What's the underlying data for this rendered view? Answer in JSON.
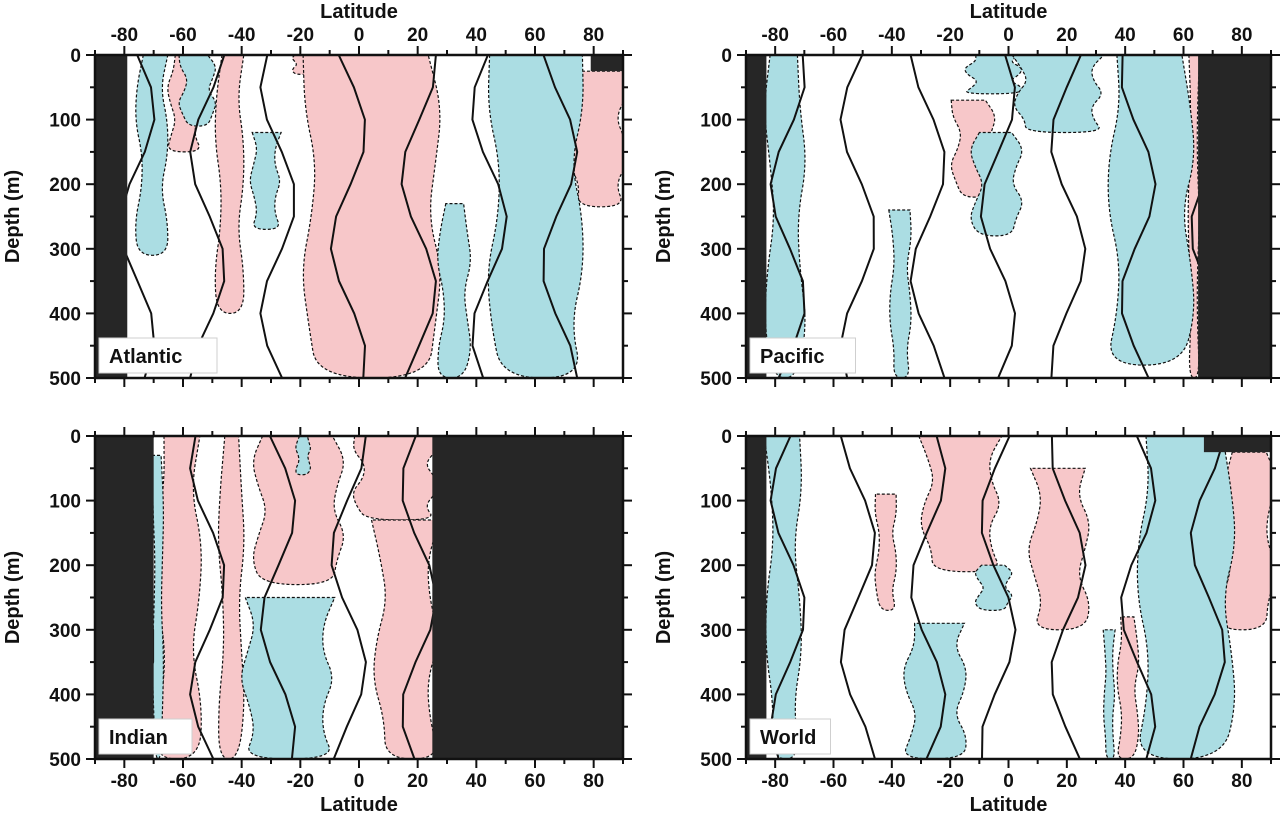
{
  "colors": {
    "positive_fill": "#f7c7c9",
    "negative_fill": "#abdde3",
    "land_fill": "#262626",
    "contour_line": "#111111"
  },
  "chart_data": [
    {
      "type": "heatmap",
      "panel": "Atlantic",
      "basin_label": "Atlantic",
      "xlabel_top": "Latitude",
      "xlabel_bottom": "",
      "ylabel": "Depth (m)",
      "xlim": [
        -90,
        90
      ],
      "ylim": [
        0,
        500
      ],
      "y_inverted": true,
      "xticks": [
        -80,
        -60,
        -40,
        -20,
        0,
        20,
        40,
        60,
        80
      ],
      "yticks": [
        0,
        100,
        200,
        300,
        400,
        500
      ],
      "land_regions": [
        {
          "lat": [
            -90,
            -79
          ],
          "depth": [
            0,
            500
          ]
        },
        {
          "lat": [
            79,
            90
          ],
          "depth": [
            0,
            25
          ]
        }
      ],
      "positive_bands": [
        {
          "lat": [
            -64,
            -55
          ],
          "depth": [
            0,
            150
          ]
        },
        {
          "lat": [
            -48,
            -40
          ],
          "depth": [
            0,
            400
          ]
        },
        {
          "lat": [
            -22,
            -17
          ],
          "depth": [
            0,
            30
          ]
        },
        {
          "lat": [
            -17,
            26
          ],
          "depth": [
            0,
            500
          ]
        },
        {
          "lat": [
            73,
            90
          ],
          "depth": [
            25,
            235
          ]
        }
      ],
      "negative_bands": [
        {
          "lat": [
            -75,
            -66
          ],
          "depth": [
            0,
            310
          ]
        },
        {
          "lat": [
            -60,
            -50
          ],
          "depth": [
            0,
            110
          ]
        },
        {
          "lat": [
            -36,
            -28
          ],
          "depth": [
            120,
            270
          ]
        },
        {
          "lat": [
            28,
            37
          ],
          "depth": [
            230,
            500
          ]
        },
        {
          "lat": [
            46,
            75
          ],
          "depth": [
            0,
            500
          ]
        }
      ]
    },
    {
      "type": "heatmap",
      "panel": "Pacific",
      "basin_label": "Pacific",
      "xlabel_top": "Latitude",
      "xlabel_bottom": "",
      "ylabel": "Depth (m)",
      "xlim": [
        -90,
        90
      ],
      "ylim": [
        0,
        500
      ],
      "y_inverted": true,
      "xticks": [
        -80,
        -60,
        -40,
        -20,
        0,
        20,
        40,
        60,
        80
      ],
      "yticks": [
        0,
        100,
        200,
        300,
        400,
        500
      ],
      "land_regions": [
        {
          "lat": [
            -90,
            -83
          ],
          "depth": [
            0,
            500
          ]
        },
        {
          "lat": [
            65,
            90
          ],
          "depth": [
            0,
            500
          ]
        }
      ],
      "positive_bands": [
        {
          "lat": [
            -18,
            -6
          ],
          "depth": [
            70,
            220
          ]
        },
        {
          "lat": [
            44,
            53
          ],
          "depth": [
            100,
            200
          ]
        },
        {
          "lat": [
            62,
            65
          ],
          "depth": [
            0,
            500
          ]
        }
      ],
      "negative_bands": [
        {
          "lat": [
            -82,
            -71
          ],
          "depth": [
            0,
            500
          ]
        },
        {
          "lat": [
            -40,
            -34
          ],
          "depth": [
            240,
            500
          ]
        },
        {
          "lat": [
            -13,
            3
          ],
          "depth": [
            0,
            60
          ]
        },
        {
          "lat": [
            -11,
            3
          ],
          "depth": [
            120,
            280
          ]
        },
        {
          "lat": [
            4,
            30
          ],
          "depth": [
            0,
            120
          ]
        },
        {
          "lat": [
            36,
            62
          ],
          "depth": [
            0,
            480
          ]
        }
      ]
    },
    {
      "type": "heatmap",
      "panel": "Indian",
      "basin_label": "Indian",
      "xlabel_top": "",
      "xlabel_bottom": "Latitude",
      "ylabel": "Depth (m)",
      "xlim": [
        -90,
        90
      ],
      "ylim": [
        0,
        500
      ],
      "y_inverted": true,
      "xticks": [
        -80,
        -60,
        -40,
        -20,
        0,
        20,
        40,
        60,
        80
      ],
      "yticks": [
        0,
        100,
        200,
        300,
        400,
        500
      ],
      "land_regions": [
        {
          "lat": [
            -90,
            -70
          ],
          "depth": [
            0,
            500
          ]
        },
        {
          "lat": [
            25,
            90
          ],
          "depth": [
            0,
            500
          ]
        }
      ],
      "positive_bands": [
        {
          "lat": [
            -68,
            -55
          ],
          "depth": [
            0,
            500
          ]
        },
        {
          "lat": [
            -47,
            -40
          ],
          "depth": [
            0,
            500
          ]
        },
        {
          "lat": [
            -34,
            -7
          ],
          "depth": [
            0,
            230
          ]
        },
        {
          "lat": [
            0,
            25
          ],
          "depth": [
            0,
            130
          ]
        },
        {
          "lat": [
            7,
            25
          ],
          "depth": [
            130,
            500
          ]
        }
      ],
      "negative_bands": [
        {
          "lat": [
            -70,
            -67
          ],
          "depth": [
            30,
            500
          ]
        },
        {
          "lat": [
            -38,
            -11
          ],
          "depth": [
            250,
            500
          ]
        },
        {
          "lat": [
            -21,
            -17
          ],
          "depth": [
            0,
            60
          ]
        }
      ]
    },
    {
      "type": "heatmap",
      "panel": "World",
      "basin_label": "World",
      "xlabel_top": "",
      "xlabel_bottom": "Latitude",
      "ylabel": "Depth (m)",
      "xlim": [
        -90,
        90
      ],
      "ylim": [
        0,
        500
      ],
      "y_inverted": true,
      "xticks": [
        -80,
        -60,
        -40,
        -20,
        0,
        20,
        40,
        60,
        80
      ],
      "yticks": [
        0,
        100,
        200,
        300,
        400,
        500
      ],
      "land_regions": [
        {
          "lat": [
            -90,
            -83
          ],
          "depth": [
            0,
            500
          ]
        },
        {
          "lat": [
            67,
            90
          ],
          "depth": [
            0,
            25
          ]
        }
      ],
      "positive_bands": [
        {
          "lat": [
            -45,
            -39
          ],
          "depth": [
            90,
            270
          ]
        },
        {
          "lat": [
            -28,
            -5
          ],
          "depth": [
            0,
            210
          ]
        },
        {
          "lat": [
            9,
            26
          ],
          "depth": [
            50,
            300
          ]
        },
        {
          "lat": [
            38,
            44
          ],
          "depth": [
            280,
            500
          ]
        },
        {
          "lat": [
            74,
            90
          ],
          "depth": [
            25,
            300
          ]
        }
      ],
      "negative_bands": [
        {
          "lat": [
            -82,
            -72
          ],
          "depth": [
            0,
            500
          ]
        },
        {
          "lat": [
            -34,
            -16
          ],
          "depth": [
            290,
            500
          ]
        },
        {
          "lat": [
            -10,
            0
          ],
          "depth": [
            200,
            270
          ]
        },
        {
          "lat": [
            33,
            36
          ],
          "depth": [
            300,
            500
          ]
        },
        {
          "lat": [
            46,
            76
          ],
          "depth": [
            0,
            500
          ]
        }
      ]
    }
  ]
}
